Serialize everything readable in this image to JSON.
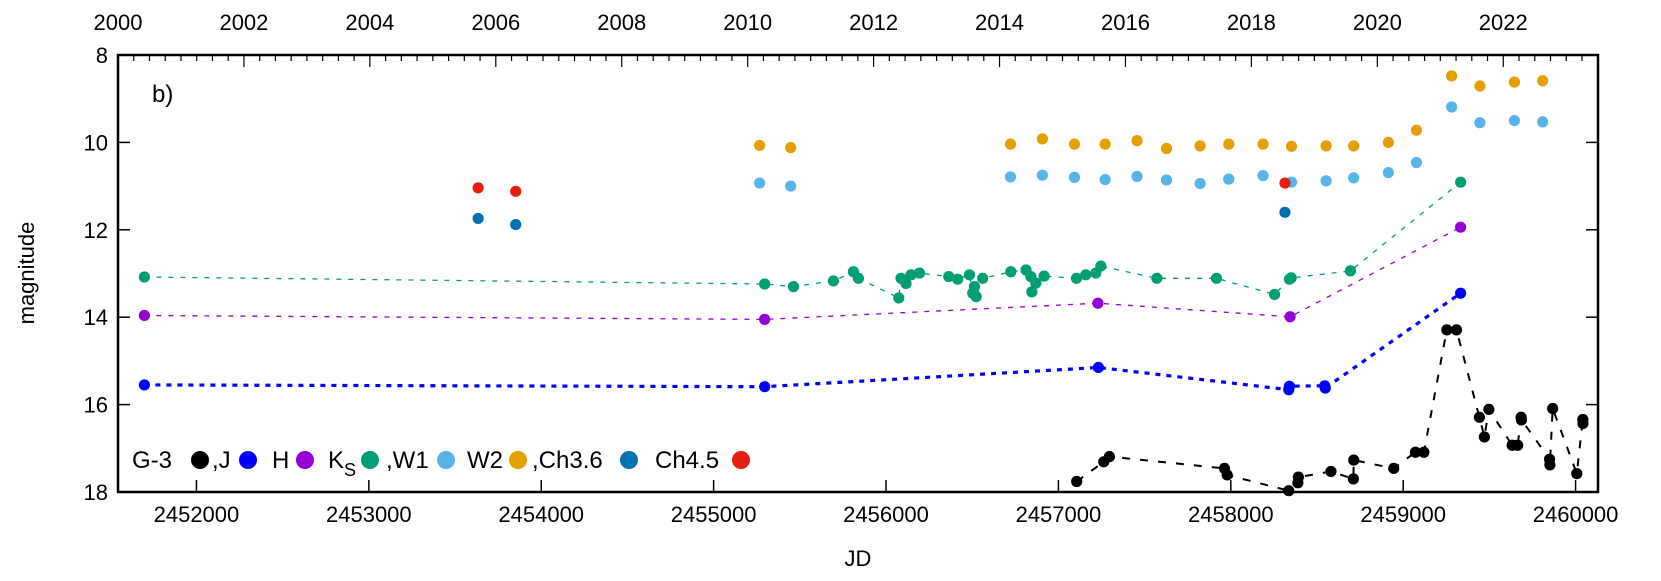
{
  "chart_data": {
    "type": "scatter",
    "panel_label": "b)",
    "xlabel": "JD",
    "ylabel": "magnitude",
    "xlim": [
      2451545,
      2460130
    ],
    "ylim": [
      18,
      8
    ],
    "y_inverted": true,
    "grid": false,
    "legend_placement": "bottom-left",
    "x_ticks": [
      "2452000",
      "2453000",
      "2454000",
      "2455000",
      "2456000",
      "2457000",
      "2458000",
      "2459000",
      "2460000"
    ],
    "y_ticks": [
      "8",
      "10",
      "12",
      "14",
      "16",
      "18"
    ],
    "top_axis_ticks": [
      "2000",
      "2002",
      "2004",
      "2006",
      "2008",
      "2010",
      "2012",
      "2014",
      "2016",
      "2018",
      "2020",
      "2022"
    ],
    "series": [
      {
        "name": "G-3",
        "legend_label": "G-3",
        "color": "#000000",
        "line": "dashed",
        "points": [
          [
            2457106,
            17.76
          ],
          [
            2457263,
            17.31
          ],
          [
            2457296,
            17.19
          ],
          [
            2457963,
            17.46
          ],
          [
            2457979,
            17.61
          ],
          [
            2458336,
            17.97
          ],
          [
            2458389,
            17.79
          ],
          [
            2458392,
            17.66
          ],
          [
            2458581,
            17.53
          ],
          [
            2458711,
            17.7
          ],
          [
            2458713,
            17.27
          ],
          [
            2458945,
            17.46
          ],
          [
            2459071,
            17.09
          ],
          [
            2459120,
            17.09
          ],
          [
            2459253,
            14.29
          ],
          [
            2459309,
            14.29
          ],
          [
            2459442,
            16.29
          ],
          [
            2459471,
            16.74
          ],
          [
            2459497,
            16.11
          ],
          [
            2459632,
            16.93
          ],
          [
            2459664,
            16.93
          ],
          [
            2459684,
            16.29
          ],
          [
            2459686,
            16.35
          ],
          [
            2459849,
            17.25
          ],
          [
            2459851,
            17.38
          ],
          [
            2459867,
            16.09
          ],
          [
            2460007,
            17.58
          ],
          [
            2460042,
            16.34
          ],
          [
            2460043,
            16.43
          ]
        ]
      },
      {
        "name": "J",
        "legend_label": ",J",
        "color": "#0000ff",
        "line": "dotted",
        "points": [
          [
            2451698,
            15.55
          ],
          [
            2455296,
            15.59
          ],
          [
            2457232,
            15.15
          ],
          [
            2458336,
            15.66
          ],
          [
            2458340,
            15.58
          ],
          [
            2458545,
            15.57
          ],
          [
            2458548,
            15.62
          ],
          [
            2459333,
            13.45
          ]
        ]
      },
      {
        "name": "H",
        "legend_label": "H",
        "color": "#9400d3",
        "line": "dashed-thin",
        "points": [
          [
            2451698,
            13.96
          ],
          [
            2455296,
            14.05
          ],
          [
            2457229,
            13.68
          ],
          [
            2458344,
            13.99
          ],
          [
            2459333,
            11.94
          ]
        ]
      },
      {
        "name": "KS",
        "legend_label": "K",
        "legend_sub": "S",
        "color": "#009e73",
        "line": "dashed-thin",
        "points": [
          [
            2451698,
            13.08
          ],
          [
            2455296,
            13.24
          ],
          [
            2455463,
            13.3
          ],
          [
            2455695,
            13.17
          ],
          [
            2455811,
            12.96
          ],
          [
            2455840,
            13.11
          ],
          [
            2456074,
            13.56
          ],
          [
            2456087,
            13.11
          ],
          [
            2456116,
            13.23
          ],
          [
            2456145,
            13.03
          ],
          [
            2456194,
            12.99
          ],
          [
            2456364,
            13.07
          ],
          [
            2456416,
            13.13
          ],
          [
            2456484,
            13.03
          ],
          [
            2456503,
            13.45
          ],
          [
            2456513,
            13.3
          ],
          [
            2456523,
            13.53
          ],
          [
            2456561,
            13.11
          ],
          [
            2456724,
            12.96
          ],
          [
            2456812,
            12.92
          ],
          [
            2456840,
            13.07
          ],
          [
            2456846,
            13.42
          ],
          [
            2456869,
            13.22
          ],
          [
            2456917,
            13.06
          ],
          [
            2457105,
            13.11
          ],
          [
            2457159,
            13.03
          ],
          [
            2457217,
            12.99
          ],
          [
            2457246,
            12.83
          ],
          [
            2457571,
            13.11
          ],
          [
            2457917,
            13.11
          ],
          [
            2458254,
            13.48
          ],
          [
            2458340,
            13.13
          ],
          [
            2458350,
            13.1
          ],
          [
            2458694,
            12.94
          ],
          [
            2459333,
            10.91
          ]
        ]
      },
      {
        "name": "W1",
        "legend_label": ",W1",
        "color": "#56b4e9",
        "line": "none",
        "points": [
          [
            2455267,
            10.93
          ],
          [
            2455447,
            11.0
          ],
          [
            2456722,
            10.79
          ],
          [
            2456907,
            10.75
          ],
          [
            2457093,
            10.8
          ],
          [
            2457271,
            10.85
          ],
          [
            2457456,
            10.78
          ],
          [
            2457627,
            10.86
          ],
          [
            2457822,
            10.94
          ],
          [
            2457988,
            10.84
          ],
          [
            2458187,
            10.76
          ],
          [
            2458352,
            10.91
          ],
          [
            2458553,
            10.88
          ],
          [
            2458713,
            10.81
          ],
          [
            2458914,
            10.69
          ],
          [
            2459077,
            10.46
          ],
          [
            2459281,
            9.19
          ],
          [
            2459445,
            9.55
          ],
          [
            2459645,
            9.5
          ],
          [
            2459809,
            9.53
          ]
        ]
      },
      {
        "name": "W2",
        "legend_label": "W2",
        "color": "#e69f00",
        "line": "none",
        "points": [
          [
            2455267,
            10.07
          ],
          [
            2455447,
            10.12
          ],
          [
            2456722,
            10.04
          ],
          [
            2456907,
            9.92
          ],
          [
            2457093,
            10.04
          ],
          [
            2457271,
            10.04
          ],
          [
            2457456,
            9.96
          ],
          [
            2457627,
            10.14
          ],
          [
            2457822,
            10.08
          ],
          [
            2457988,
            10.04
          ],
          [
            2458187,
            10.04
          ],
          [
            2458352,
            10.09
          ],
          [
            2458553,
            10.08
          ],
          [
            2458713,
            10.08
          ],
          [
            2458914,
            10.0
          ],
          [
            2459077,
            9.72
          ],
          [
            2459281,
            8.48
          ],
          [
            2459445,
            8.71
          ],
          [
            2459645,
            8.62
          ],
          [
            2459809,
            8.59
          ]
        ]
      },
      {
        "name": "Ch3.6",
        "legend_label": ",Ch3.6",
        "color": "#0072b2",
        "line": "none",
        "points": [
          [
            2453634,
            11.74
          ],
          [
            2453852,
            11.88
          ],
          [
            2458314,
            11.6
          ]
        ]
      },
      {
        "name": "Ch4.5",
        "legend_label": "Ch4.5",
        "color": "#e51e10",
        "line": "none",
        "points": [
          [
            2453634,
            11.04
          ],
          [
            2453852,
            11.12
          ],
          [
            2458314,
            10.93
          ]
        ]
      }
    ]
  }
}
